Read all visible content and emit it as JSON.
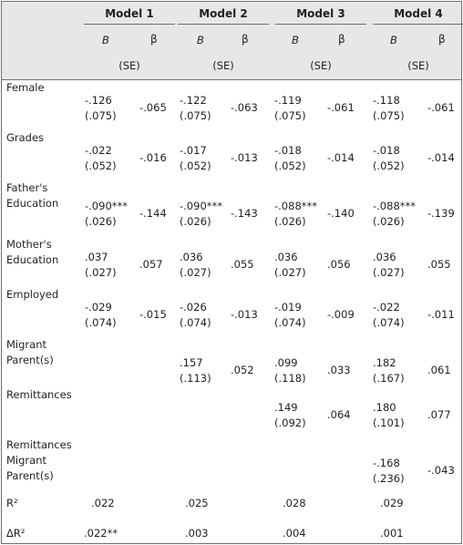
{
  "header": {
    "models": [
      "Model 1",
      "Model 2",
      "Model 3",
      "Model 4"
    ],
    "coef_b": "B",
    "coef_beta": "β",
    "se_label": "(SE)"
  },
  "rows": [
    {
      "label": [
        "Female"
      ],
      "cells": [
        [
          "-.126",
          "(.075)",
          "-.065"
        ],
        [
          "-.122",
          "(.075)",
          "-.063"
        ],
        [
          "-.119",
          "(.075)",
          "-.061"
        ],
        [
          "-.118",
          "(.075)",
          "-.061"
        ]
      ]
    },
    {
      "label": [
        "Grades"
      ],
      "cells": [
        [
          "-.022",
          "(.052)",
          "-.016"
        ],
        [
          "-.017",
          "(.052)",
          "-.013"
        ],
        [
          "-.018",
          "(.052)",
          "-.014"
        ],
        [
          "-.018",
          "(.052)",
          "-.014"
        ]
      ]
    },
    {
      "label": [
        "Father's",
        "Education"
      ],
      "cells": [
        [
          "-.090***",
          "(.026)",
          "-.144"
        ],
        [
          "-.090***",
          "(.026)",
          "-.143"
        ],
        [
          "-.088***",
          "(.026)",
          "-.140"
        ],
        [
          "-.088***",
          "(.026)",
          "-.139"
        ]
      ]
    },
    {
      "label": [
        "Mother's",
        "Education"
      ],
      "cells": [
        [
          ".037",
          "(.027)",
          ".057"
        ],
        [
          ".036",
          "(.027)",
          ".055"
        ],
        [
          ".036",
          "(.027)",
          ".056"
        ],
        [
          ".036",
          "(.027)",
          ".055"
        ]
      ]
    },
    {
      "label": [
        "Employed"
      ],
      "cells": [
        [
          "-.029",
          "(.074)",
          "-.015"
        ],
        [
          "-.026",
          "(.074)",
          "-.013"
        ],
        [
          "-.019",
          "(.074)",
          "-.009"
        ],
        [
          "-.022",
          "(.074)",
          "-.011"
        ]
      ]
    },
    {
      "label": [
        "Migrant",
        "Parent(s)"
      ],
      "cells": [
        null,
        [
          ".157",
          "(.113)",
          ".052"
        ],
        [
          ".099",
          "(.118)",
          ".033"
        ],
        [
          ".182",
          "(.167)",
          ".061"
        ]
      ]
    },
    {
      "label": [
        "Remittances"
      ],
      "cells": [
        null,
        null,
        [
          ".149",
          "(.092)",
          ".064"
        ],
        [
          ".180",
          "(.101)",
          ".077"
        ]
      ]
    },
    {
      "label": [
        "Remittances",
        "Migrant",
        "Parent(s)"
      ],
      "cells": [
        null,
        null,
        null,
        [
          "-.168",
          "(.236)",
          "-.043"
        ]
      ]
    }
  ],
  "fit": {
    "r2_label": "R²",
    "r2": [
      ".022",
      ".025",
      ".028",
      ".029"
    ],
    "dr2_label": "ΔR²",
    "dr2": [
      ".022**",
      ".003",
      ".004",
      ".001"
    ]
  }
}
